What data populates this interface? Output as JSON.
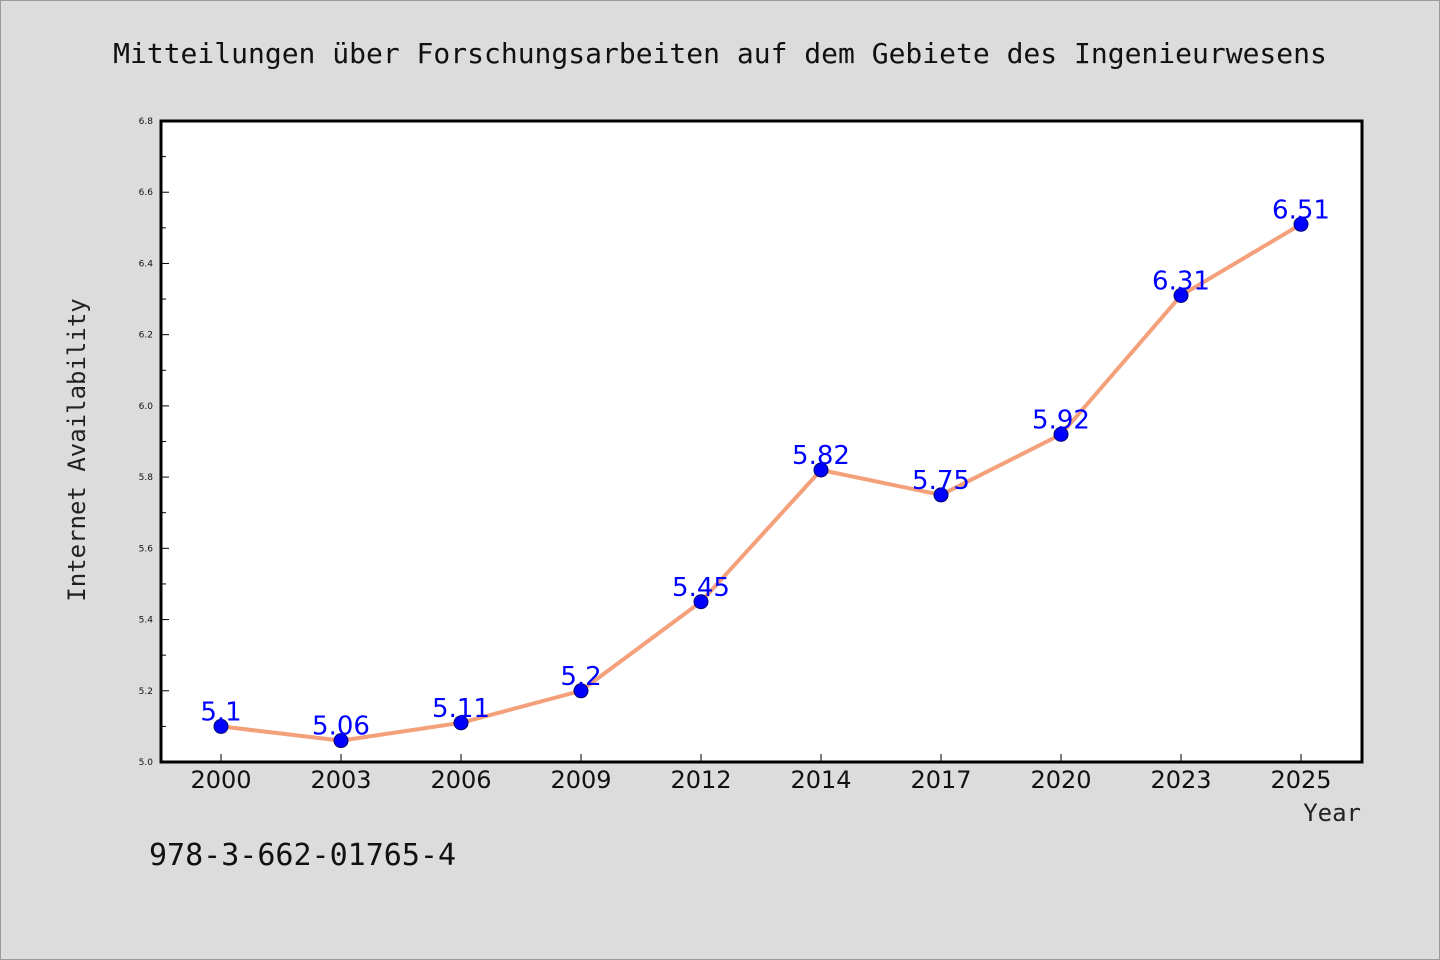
{
  "chart_data": {
    "type": "line",
    "title": "Mitteilungen über Forschungsarbeiten auf dem Gebiete des Ingenieurwesens",
    "xlabel": "Year",
    "ylabel": "Internet Availability",
    "categories": [
      "2000",
      "2003",
      "2006",
      "2009",
      "2012",
      "2014",
      "2017",
      "2020",
      "2023",
      "2025"
    ],
    "values": [
      5.1,
      5.06,
      5.11,
      5.2,
      5.45,
      5.82,
      5.75,
      5.92,
      6.31,
      6.51
    ],
    "data_labels": [
      "5.1",
      "5.06",
      "5.11",
      "5.2",
      "5.45",
      "5.82",
      "5.75",
      "5.92",
      "6.31",
      "6.51"
    ],
    "ylim": [
      5.0,
      6.8
    ],
    "yticks": [
      "5.0",
      "5.2",
      "5.4",
      "5.6",
      "5.8",
      "6.0",
      "6.2",
      "6.4",
      "6.6",
      "6.8"
    ],
    "grid": false,
    "legend": "none",
    "line_color": "#f4a07a",
    "marker_color": "#0000ff",
    "label_color": "#0000ff"
  },
  "footer": {
    "isbn": "978-3-662-01765-4"
  }
}
